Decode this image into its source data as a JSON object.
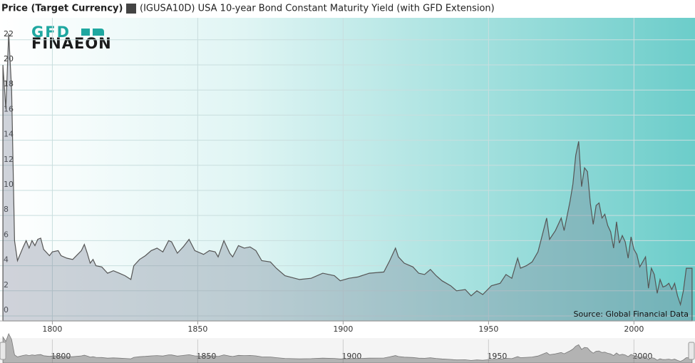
{
  "chart_data": {
    "type": "area",
    "title": "Price (Target Currency)",
    "source": "Source: Global Financial Data",
    "logo": {
      "top": "GFD",
      "bottom": "FINAEON"
    },
    "x": [
      1783,
      1784,
      1785,
      1786,
      1787,
      1788,
      1790,
      1791,
      1792,
      1793,
      1794,
      1795,
      1796,
      1797,
      1799,
      1800,
      1802,
      1803,
      1805,
      1807,
      1810,
      1811,
      1812,
      1813,
      1814,
      1815,
      1817,
      1819,
      1821,
      1823,
      1825,
      1827,
      1828,
      1830,
      1832,
      1834,
      1836,
      1838,
      1840,
      1841,
      1843,
      1845,
      1847,
      1849,
      1852,
      1854,
      1856,
      1857,
      1859,
      1861,
      1862,
      1864,
      1866,
      1868,
      1870,
      1872,
      1875,
      1877,
      1880,
      1885,
      1889,
      1893,
      1897,
      1899,
      1902,
      1905,
      1909,
      1914,
      1916,
      1918,
      1919,
      1921,
      1924,
      1926,
      1928,
      1930,
      1932,
      1934,
      1937,
      1939,
      1942,
      1944,
      1946,
      1948,
      1951,
      1954,
      1956,
      1958,
      1960,
      1961,
      1963,
      1965,
      1967,
      1968,
      1970,
      1971,
      1973,
      1975,
      1976,
      1978,
      1979,
      1980,
      1981,
      1982,
      1983,
      1984,
      1985,
      1986,
      1987,
      1988,
      1989,
      1990,
      1991,
      1992,
      1993,
      1994,
      1995,
      1996,
      1997,
      1998,
      1999,
      2000,
      2001,
      2002,
      2003,
      2004,
      2005,
      2006,
      2007,
      2008,
      2009,
      2010,
      2011,
      2012,
      2013,
      2014,
      2015,
      2016,
      2017,
      2018,
      2020
    ],
    "series": [
      {
        "name": "(IGUSA10D) USA 10-year Bond Constant Maturity Yield (with GFD Extension)",
        "color": "#555555",
        "legend_color": "#444444",
        "values": [
          20,
          16.5,
          22.5,
          18,
          6,
          4.4,
          5.5,
          6,
          5.4,
          6,
          5.6,
          6.1,
          6.2,
          5.3,
          4.8,
          5.1,
          5.2,
          4.8,
          4.6,
          4.5,
          5.2,
          5.7,
          5,
          4.2,
          4.5,
          4,
          3.9,
          3.4,
          3.6,
          3.4,
          3.2,
          2.9,
          4,
          4.5,
          4.8,
          5.2,
          5.4,
          5.1,
          6,
          5.9,
          5,
          5.5,
          6.1,
          5.2,
          4.9,
          5.2,
          5.1,
          4.7,
          6,
          5,
          4.7,
          5.6,
          5.4,
          5.5,
          5.2,
          4.4,
          4.3,
          3.8,
          3.2,
          2.9,
          3,
          3.4,
          3.2,
          2.8,
          3,
          3.1,
          3.4,
          3.5,
          4.4,
          5.4,
          4.7,
          4.2,
          3.9,
          3.4,
          3.3,
          3.7,
          3.2,
          2.8,
          2.4,
          2,
          2.1,
          1.6,
          2,
          1.7,
          2.4,
          2.6,
          3.3,
          3,
          4.6,
          3.8,
          4,
          4.3,
          5.1,
          6,
          7.8,
          6.1,
          6.8,
          7.8,
          6.8,
          9.1,
          10.5,
          12.8,
          13.9,
          10.3,
          11.8,
          11.5,
          9,
          7.3,
          8.8,
          9,
          7.8,
          8.1,
          7.2,
          6.7,
          5.4,
          7.5,
          5.8,
          6.4,
          5.9,
          4.6,
          6.3,
          5.3,
          4.9,
          3.9,
          4.3,
          4.7,
          2.2,
          3.8,
          3.3,
          1.8,
          2.9,
          2.3,
          2.4,
          2.6,
          2.1,
          2.6,
          1.6,
          0.9,
          2,
          3.8,
          3.8
        ]
      }
    ],
    "xlim": [
      1782,
      2021
    ],
    "xticks": [
      1800,
      1850,
      1900,
      1950,
      2000
    ],
    "ylim": [
      -0.4,
      23.75
    ],
    "yticks": [
      0,
      2,
      4,
      6,
      8,
      10,
      12,
      14,
      16,
      18,
      20,
      22
    ],
    "grid": true
  }
}
